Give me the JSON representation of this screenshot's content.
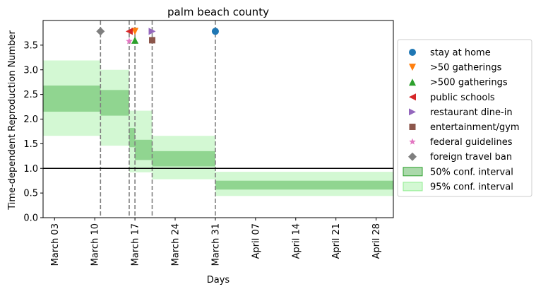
{
  "chart_data": {
    "type": "area",
    "title": "palm beach county",
    "xlabel": "Days",
    "ylabel": "Time-dependent Reproduction Number",
    "xlim": [
      "2020-03-01",
      "2020-05-01"
    ],
    "ylim": [
      0,
      4.0
    ],
    "x_ticks": [
      {
        "date": "2020-03-03",
        "label": "March 03"
      },
      {
        "date": "2020-03-10",
        "label": "March 10"
      },
      {
        "date": "2020-03-17",
        "label": "March 17"
      },
      {
        "date": "2020-03-24",
        "label": "March 24"
      },
      {
        "date": "2020-03-31",
        "label": "March 31"
      },
      {
        "date": "2020-04-07",
        "label": "April 07"
      },
      {
        "date": "2020-04-14",
        "label": "April 14"
      },
      {
        "date": "2020-04-21",
        "label": "April 21"
      },
      {
        "date": "2020-04-28",
        "label": "April 28"
      }
    ],
    "y_ticks": [
      0.0,
      0.5,
      1.0,
      1.5,
      2.0,
      2.5,
      3.0,
      3.5
    ],
    "reference_line": {
      "y": 1.0,
      "color": "#000000"
    },
    "grid": false,
    "legend_position": "right, outside plot",
    "interventions": [
      {
        "name": "stay at home",
        "date": "2020-03-31",
        "marker": "circle",
        "color": "#1f77b4",
        "y": 3.78
      },
      {
        "name": ">50 gatherings",
        "date": "2020-03-17",
        "marker": "triangle-down",
        "color": "#ff7f0e",
        "y": 3.78
      },
      {
        "name": ">500 gatherings",
        "date": "2020-03-17",
        "marker": "triangle-up",
        "color": "#2ca02c",
        "y": 3.6
      },
      {
        "name": "public schools",
        "date": "2020-03-16",
        "marker": "triangle-left",
        "color": "#d62728",
        "y": 3.78
      },
      {
        "name": "restaurant dine-in",
        "date": "2020-03-20",
        "marker": "triangle-right",
        "color": "#9467bd",
        "y": 3.78
      },
      {
        "name": "entertainment/gym",
        "date": "2020-03-20",
        "marker": "square",
        "color": "#8c564b",
        "y": 3.6
      },
      {
        "name": "federal guidelines",
        "date": "2020-03-16",
        "marker": "star",
        "color": "#e377c2",
        "y": 3.58
      },
      {
        "name": "foreign travel ban",
        "date": "2020-03-11",
        "marker": "diamond",
        "color": "#7f7f7f",
        "y": 3.78
      }
    ],
    "vertical_lines_dates": [
      "2020-03-11",
      "2020-03-16",
      "2020-03-17",
      "2020-03-20",
      "2020-03-31"
    ],
    "conf_50": {
      "label": "50% conf. interval",
      "color": "#2ca02c",
      "segments": [
        {
          "start": "2020-03-01",
          "end": "2020-03-11",
          "low": 2.15,
          "high": 2.68
        },
        {
          "start": "2020-03-11",
          "end": "2020-03-16",
          "low": 2.07,
          "high": 2.59
        },
        {
          "start": "2020-03-16",
          "end": "2020-03-17",
          "low": 1.43,
          "high": 1.82
        },
        {
          "start": "2020-03-17",
          "end": "2020-03-20",
          "low": 1.17,
          "high": 1.58
        },
        {
          "start": "2020-03-20",
          "end": "2020-03-31",
          "low": 1.04,
          "high": 1.35
        },
        {
          "start": "2020-03-31",
          "end": "2020-05-01",
          "low": 0.57,
          "high": 0.75
        }
      ]
    },
    "conf_95": {
      "label": "95% conf. interval",
      "color": "#90ee90",
      "segments": [
        {
          "start": "2020-03-01",
          "end": "2020-03-11",
          "low": 1.66,
          "high": 3.19
        },
        {
          "start": "2020-03-11",
          "end": "2020-03-16",
          "low": 1.46,
          "high": 3.0
        },
        {
          "start": "2020-03-16",
          "end": "2020-03-20",
          "low": 0.92,
          "high": 2.17
        },
        {
          "start": "2020-03-20",
          "end": "2020-03-31",
          "low": 0.78,
          "high": 1.66
        },
        {
          "start": "2020-03-31",
          "end": "2020-05-01",
          "low": 0.44,
          "high": 0.93
        }
      ]
    }
  }
}
